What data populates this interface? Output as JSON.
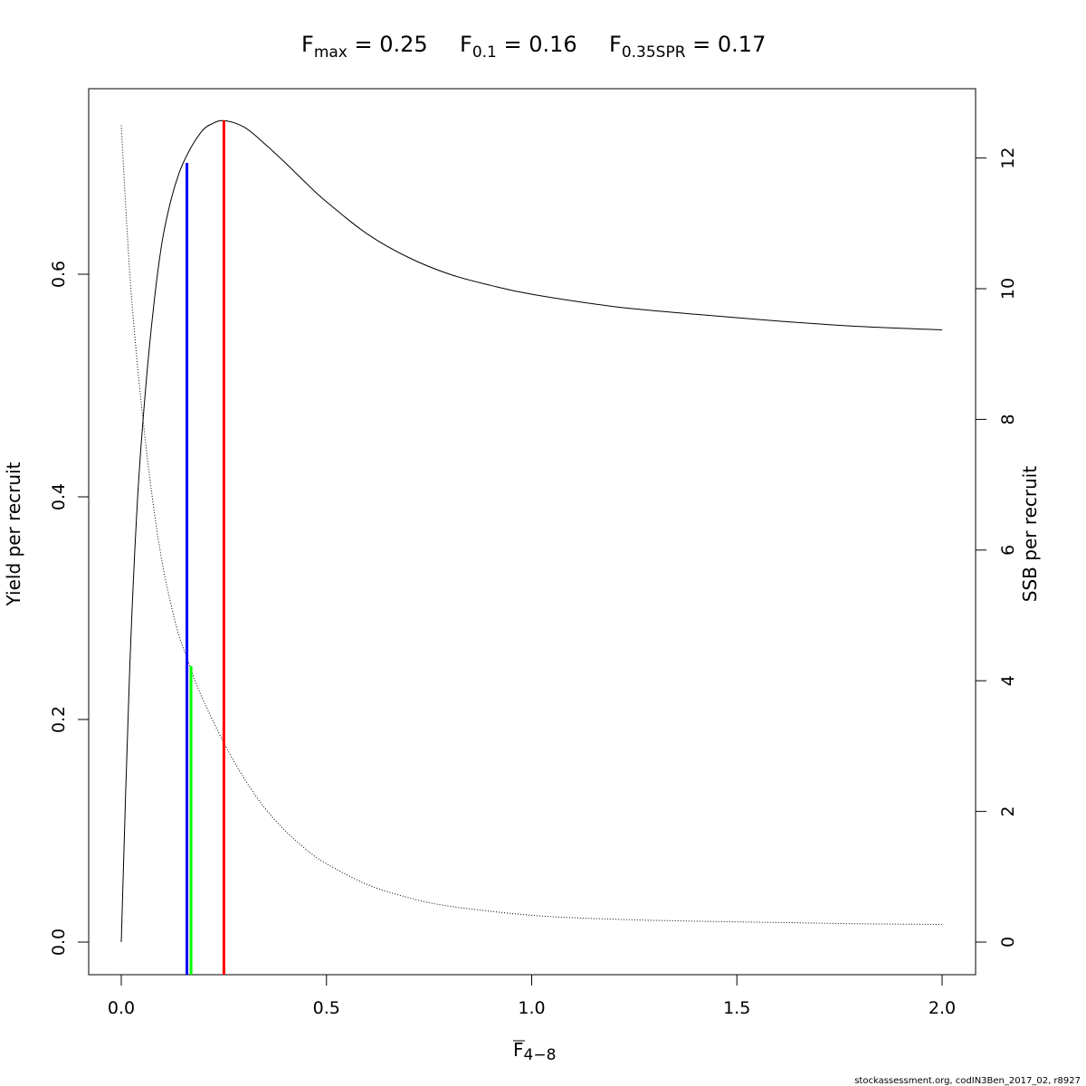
{
  "title": {
    "fmax": {
      "symbol": "F",
      "sub": "max",
      "eq": " = 0.25"
    },
    "f01": {
      "symbol": "F",
      "sub": "0.1",
      "eq": " = 0.16"
    },
    "fspr": {
      "symbol": "F",
      "sub": "0.35SPR",
      "eq": " = 0.17"
    }
  },
  "axes": {
    "xlabel_main": "F",
    "xlabel_sub": "4−8",
    "ylabel_left": "Yield per recruit",
    "ylabel_right": "SSB per recruit"
  },
  "credit": "stockassessment.org, codIN3Ben_2017_02, r8927",
  "chart_data": {
    "type": "line",
    "title": "Fmax = 0.25   F0.1 = 0.16   F0.35SPR = 0.17",
    "xlabel": "F 4-8",
    "ylabel": "Yield per recruit",
    "ylabel_right": "SSB per recruit",
    "xlim": [
      0,
      2
    ],
    "ylim": [
      0,
      0.75
    ],
    "ylim_right": [
      0,
      12.5
    ],
    "x_ticks": [
      "0.0",
      "0.5",
      "1.0",
      "1.5",
      "2.0"
    ],
    "y_ticks": [
      "0.0",
      "0.2",
      "0.4",
      "0.6"
    ],
    "y_right_ticks": [
      "0",
      "2",
      "4",
      "6",
      "8",
      "10",
      "12"
    ],
    "grid": false,
    "legend": "none",
    "series": [
      {
        "axis": "left",
        "style": "solid",
        "color": "#000000",
        "x": [
          0,
          0.02,
          0.04,
          0.06,
          0.08,
          0.1,
          0.12,
          0.14,
          0.16,
          0.18,
          0.2,
          0.22,
          0.25,
          0.3,
          0.35,
          0.4,
          0.45,
          0.5,
          0.6,
          0.7,
          0.8,
          0.9,
          1.0,
          1.2,
          1.4,
          1.6,
          1.8,
          2.0
        ],
        "y": [
          0,
          0.24,
          0.4,
          0.5,
          0.575,
          0.63,
          0.665,
          0.69,
          0.707,
          0.72,
          0.73,
          0.735,
          0.738,
          0.732,
          0.717,
          0.7,
          0.682,
          0.665,
          0.636,
          0.615,
          0.6,
          0.59,
          0.582,
          0.571,
          0.564,
          0.558,
          0.553,
          0.55
        ]
      },
      {
        "axis": "right",
        "style": "dotted",
        "color": "#000000",
        "x": [
          0,
          0.02,
          0.04,
          0.06,
          0.08,
          0.1,
          0.12,
          0.14,
          0.16,
          0.18,
          0.2,
          0.25,
          0.3,
          0.35,
          0.4,
          0.45,
          0.5,
          0.6,
          0.7,
          0.8,
          1.0,
          1.2,
          1.4,
          1.6,
          1.8,
          2.0
        ],
        "y": [
          12.5,
          10.3,
          8.8,
          7.6,
          6.6,
          5.8,
          5.2,
          4.7,
          4.35,
          4.0,
          3.7,
          3.05,
          2.5,
          2.05,
          1.7,
          1.42,
          1.2,
          0.88,
          0.68,
          0.55,
          0.41,
          0.35,
          0.32,
          0.3,
          0.28,
          0.27
        ]
      }
    ],
    "reference_lines": [
      {
        "name": "F0.1",
        "x": 0.16,
        "y_top": 0.7,
        "color": "#0000ff"
      },
      {
        "name": "F0.35SPR",
        "x": 0.17,
        "y_top": 0.248,
        "color": "#00ff00"
      },
      {
        "name": "Fmax",
        "x": 0.25,
        "y_top": 0.738,
        "color": "#ff0000"
      }
    ]
  }
}
